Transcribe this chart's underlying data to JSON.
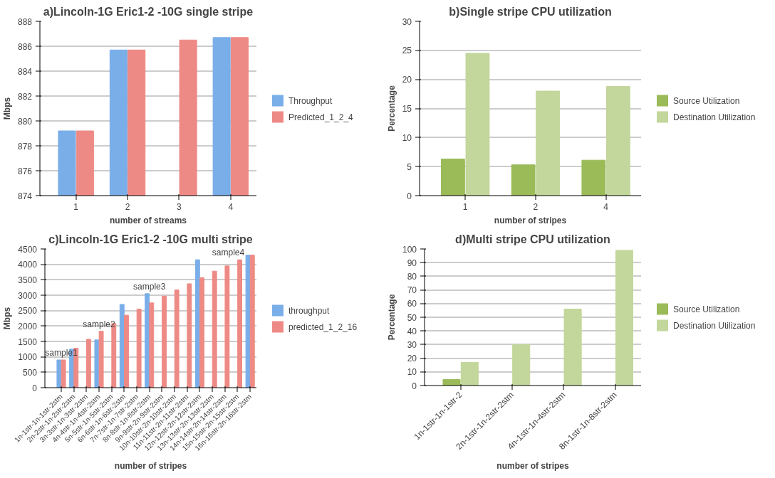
{
  "chart_data": [
    {
      "type": "bar",
      "title": "a)Lincoln-1G Eric1-2 -10G single stripe",
      "xlabel": "number of streams",
      "ylabel": "Mbps",
      "categories": [
        "1",
        "2",
        "3",
        "4"
      ],
      "series": [
        {
          "name": "Throughput",
          "color": "#79aee9",
          "values": [
            879.2,
            885.7,
            null,
            886.7
          ]
        },
        {
          "name": "Predicted_1_2_4",
          "color": "#ee8a85",
          "values": [
            879.2,
            885.7,
            886.5,
            886.7
          ]
        }
      ],
      "ylim": [
        874,
        888
      ],
      "yticks": [
        874,
        876,
        878,
        880,
        882,
        884,
        886,
        888
      ],
      "grid": "y",
      "legend": "right"
    },
    {
      "type": "bar",
      "title": "b)Single stripe CPU utilization",
      "xlabel": "number of stripes",
      "ylabel": "Percentage",
      "categories": [
        "1",
        "2",
        "4"
      ],
      "series": [
        {
          "name": "Source Utilization",
          "color": "#9bbb59",
          "values": [
            6.3,
            5.3,
            6.1
          ]
        },
        {
          "name": "Destination Utilization",
          "color": "#c3d69b",
          "values": [
            24.5,
            18,
            18.8
          ]
        }
      ],
      "ylim": [
        0,
        30
      ],
      "yticks": [
        0,
        5,
        10,
        15,
        20,
        25,
        30
      ],
      "grid": "y",
      "legend": "right"
    },
    {
      "type": "bar",
      "title": "c)Lincoln-1G Eric1-2 -10G multi stripe",
      "xlabel": "number of stripes",
      "ylabel": "Mbps",
      "categories": [
        "1n-1str-1n-1str-2stm",
        "2n-2str-1n-2str-2stm",
        "3n-3str-1n-3str-2stm",
        "4n-4str-1n-4str-2stm",
        "5n-5str-1n-5str-2stm",
        "6n-6str-1n-6str-2stm",
        "7n-7str-1n-7str-2stm",
        "8n-8str-1n-8str-2stm",
        "9n-9str-2n-9str-2stm",
        "10n-10str-2n-10str-2stm",
        "11n-11str-2n-11str-2stm",
        "12n-12str-2n-12str-2stm",
        "13n-13str-2n-13str-2stm",
        "14n-14str-2n-14str-2stm",
        "15n-15str-2n-15str-2stm",
        "16n-16str-2n-16str-2stm"
      ],
      "series": [
        {
          "name": "throughput",
          "color": "#79aee9",
          "values": [
            900,
            1250,
            null,
            1550,
            null,
            2700,
            null,
            3050,
            null,
            null,
            null,
            4150,
            null,
            null,
            null,
            4300
          ]
        },
        {
          "name": "predicted_1_2_16",
          "color": "#ee8a85",
          "values": [
            900,
            1280,
            1570,
            1830,
            2080,
            2350,
            2550,
            2750,
            2970,
            3170,
            3370,
            3570,
            3780,
            3950,
            4150,
            4300
          ]
        }
      ],
      "annotations": [
        {
          "text": "sample1",
          "x": "1n-1str-1n-1str-2stm",
          "y": 900
        },
        {
          "text": "sample2",
          "x": "4n-4str-1n-4str-2stm",
          "y": 1830
        },
        {
          "text": "sample3",
          "x": "8n-8str-1n-8str-2stm",
          "y": 3050
        },
        {
          "text": "sample4",
          "x": "16n-16str-2n-16str-2stm",
          "y": 4300
        }
      ],
      "ylim": [
        0,
        4500
      ],
      "yticks": [
        0,
        500,
        1000,
        1500,
        2000,
        2500,
        3000,
        3500,
        4000,
        4500
      ],
      "grid": "y",
      "legend": "right"
    },
    {
      "type": "bar",
      "title": "d)Multi stripe CPU utilization",
      "xlabel": "number of stripes",
      "ylabel": "Percentage",
      "categories": [
        "1n-1str-1n-1str-2",
        "2n-1str-1n-2str-2stm",
        "4n-1str-1n-4str-2stm",
        "8n-1str-1n-8str-2stm"
      ],
      "series": [
        {
          "name": "Source Utilization",
          "color": "#9bbb59",
          "values": [
            4.5,
            null,
            null,
            null
          ]
        },
        {
          "name": "Destination Utilization",
          "color": "#c3d69b",
          "values": [
            17,
            30,
            56,
            99
          ]
        }
      ],
      "ylim": [
        0,
        100
      ],
      "yticks": [
        0,
        10,
        20,
        30,
        40,
        50,
        60,
        70,
        80,
        90,
        100
      ],
      "grid": "y",
      "legend": "right"
    }
  ]
}
